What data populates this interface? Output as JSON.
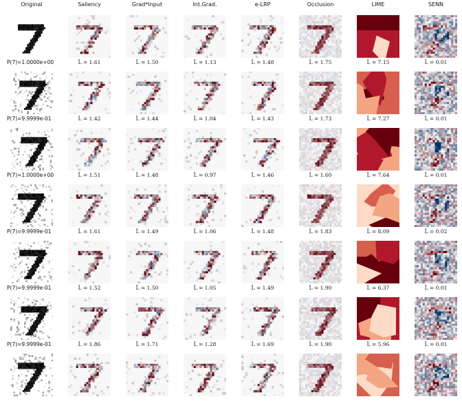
{
  "columns": [
    "Original",
    "Saliency",
    "Grad*Input",
    "Int.Grad.",
    "e-LRP",
    "Occlusion",
    "LIME",
    "SENN"
  ],
  "rows": [
    {
      "prob": "",
      "scores": [
        "",
        "",
        "",
        "",
        "",
        "",
        ""
      ]
    },
    {
      "prob": "P(7)=1.0000e+00",
      "scores": [
        "L̂ = 1.61",
        "L̂ = 1.50",
        "L̂ = 1.13",
        "L̂ = 1.48",
        "L̂ = 1.75",
        "L̂ = 7.15",
        "L̂ = 0.01"
      ]
    },
    {
      "prob": "P(7)=9.9999e-01",
      "scores": [
        "L̂ = 1.42",
        "L̂ = 1.44",
        "L̂ = 1.04",
        "L̂ = 1.43",
        "L̂ = 1.73",
        "L̂ = 7.27",
        "L̂ = 0.01"
      ]
    },
    {
      "prob": "P(7)=1.0000e+00",
      "scores": [
        "L̂ = 1.51",
        "L̂ = 1.48",
        "L̂ = 0.97",
        "L̂ = 1.46",
        "L̂ = 1.60",
        "L̂ = 7.64",
        "L̂ = 0.01"
      ]
    },
    {
      "prob": "P(7)=9.9999e-01",
      "scores": [
        "L̂ = 1.61",
        "L̂ = 1.49",
        "L̂ = 1.06",
        "L̂ = 1.48",
        "L̂ = 1.83",
        "L̂ = 8.09",
        "L̂ = 0.02"
      ]
    },
    {
      "prob": "P(7)=9.9999e-01",
      "scores": [
        "L̂ = 1.52",
        "L̂ = 1.50",
        "L̂ = 1.05",
        "L̂ = 1.49",
        "L̂ = 1.90",
        "L̂ = 6.37",
        "L̂ = 0.01"
      ]
    },
    {
      "prob": "P(7)=9.9999e-01",
      "scores": [
        "L̂ = 1.86",
        "L̂ = 1.71",
        "L̂ = 1.28",
        "L̂ = 1.69",
        "L̂ = 1.90",
        "L̂ = 5.96",
        "L̂ = 0.01"
      ]
    }
  ]
}
